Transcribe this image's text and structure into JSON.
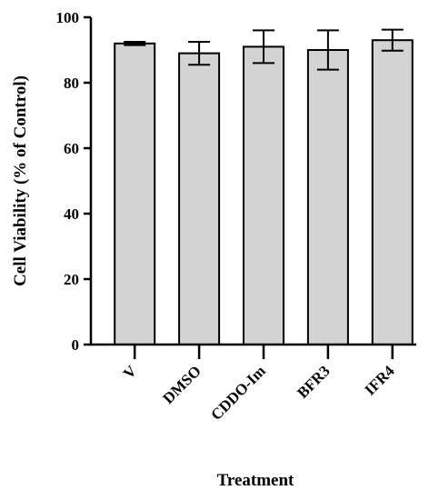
{
  "chart_data": {
    "type": "bar",
    "title": "",
    "xlabel": "Treatment",
    "ylabel": "Cell Viability (% of Control)",
    "ylim": [
      0,
      100
    ],
    "yticks": [
      0,
      20,
      40,
      60,
      80,
      100
    ],
    "categories": [
      "V",
      "DMSO",
      "CDDO-Im",
      "BFR3",
      "IFR4"
    ],
    "values": [
      92,
      89,
      91,
      90,
      93
    ],
    "error_bars": [
      0.5,
      3.5,
      5,
      6,
      3.2
    ],
    "grid": false,
    "legend": "none",
    "colors": {
      "bar_fill": "#d3d3d3",
      "bar_stroke": "#000000",
      "axis": "#000000"
    }
  }
}
